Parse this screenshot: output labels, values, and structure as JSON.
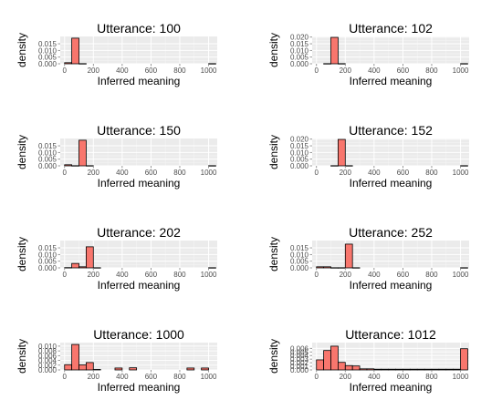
{
  "chart_data": [
    {
      "type": "bar",
      "title": "Utterance: 100",
      "xlabel": "Inferred meaning",
      "ylabel": "density",
      "xlim": [
        -30,
        1060
      ],
      "ylim": [
        0,
        0.0205
      ],
      "xticks": [
        0,
        200,
        400,
        600,
        800,
        1000
      ],
      "yticks": [
        0.0,
        0.005,
        0.01,
        0.015
      ],
      "ytick_labels": [
        "0.000",
        "0.005",
        "0.010",
        "0.015"
      ],
      "bin_width": 50,
      "bins": [
        {
          "x": 25,
          "y": 0.0008
        },
        {
          "x": 75,
          "y": 0.0192
        },
        {
          "x": 125,
          "y": 0.0001
        },
        {
          "x": 1025,
          "y": 0.0001
        }
      ]
    },
    {
      "type": "bar",
      "title": "Utterance: 102",
      "xlabel": "Inferred meaning",
      "ylabel": "density",
      "xlim": [
        -30,
        1060
      ],
      "ylim": [
        0,
        0.0205
      ],
      "xticks": [
        0,
        200,
        400,
        600,
        800,
        1000
      ],
      "yticks": [
        0.0,
        0.005,
        0.01,
        0.015,
        0.02
      ],
      "ytick_labels": [
        "0.000",
        "0.005",
        "0.010",
        "0.015",
        "0.020"
      ],
      "bin_width": 50,
      "bins": [
        {
          "x": 75,
          "y": 0.0001
        },
        {
          "x": 125,
          "y": 0.0198
        },
        {
          "x": 175,
          "y": 0.0001
        },
        {
          "x": 1025,
          "y": 0.0001
        }
      ]
    },
    {
      "type": "bar",
      "title": "Utterance: 150",
      "xlabel": "Inferred meaning",
      "ylabel": "density",
      "xlim": [
        -30,
        1060
      ],
      "ylim": [
        0,
        0.0205
      ],
      "xticks": [
        0,
        200,
        400,
        600,
        800,
        1000
      ],
      "yticks": [
        0.0,
        0.005,
        0.01,
        0.015
      ],
      "ytick_labels": [
        "0.000",
        "0.005",
        "0.010",
        "0.015"
      ],
      "bin_width": 50,
      "bins": [
        {
          "x": 25,
          "y": 0.0008
        },
        {
          "x": 75,
          "y": 0.0001
        },
        {
          "x": 125,
          "y": 0.0192
        },
        {
          "x": 175,
          "y": 0.0001
        },
        {
          "x": 1025,
          "y": 0.0001
        }
      ]
    },
    {
      "type": "bar",
      "title": "Utterance: 152",
      "xlabel": "Inferred meaning",
      "ylabel": "density",
      "xlim": [
        -30,
        1060
      ],
      "ylim": [
        0,
        0.0205
      ],
      "xticks": [
        0,
        200,
        400,
        600,
        800,
        1000
      ],
      "yticks": [
        0.0,
        0.005,
        0.01,
        0.015,
        0.02
      ],
      "ytick_labels": [
        "0.000",
        "0.005",
        "0.010",
        "0.015",
        "0.020"
      ],
      "bin_width": 50,
      "bins": [
        {
          "x": 125,
          "y": 0.0001
        },
        {
          "x": 175,
          "y": 0.0198
        },
        {
          "x": 225,
          "y": 0.0001
        },
        {
          "x": 1025,
          "y": 0.0001
        }
      ]
    },
    {
      "type": "bar",
      "title": "Utterance: 202",
      "xlabel": "Inferred meaning",
      "ylabel": "density",
      "xlim": [
        -30,
        1060
      ],
      "ylim": [
        0,
        0.0205
      ],
      "xticks": [
        0,
        200,
        400,
        600,
        800,
        1000
      ],
      "yticks": [
        0.0,
        0.005,
        0.01,
        0.015
      ],
      "ytick_labels": [
        "0.000",
        "0.005",
        "0.010",
        "0.015"
      ],
      "bin_width": 50,
      "bins": [
        {
          "x": 25,
          "y": 0.0002
        },
        {
          "x": 75,
          "y": 0.0033
        },
        {
          "x": 125,
          "y": 0.0008
        },
        {
          "x": 175,
          "y": 0.0158
        },
        {
          "x": 225,
          "y": 0.0001
        },
        {
          "x": 1025,
          "y": 0.0001
        }
      ]
    },
    {
      "type": "bar",
      "title": "Utterance: 252",
      "xlabel": "Inferred meaning",
      "ylabel": "density",
      "xlim": [
        -30,
        1060
      ],
      "ylim": [
        0,
        0.0205
      ],
      "xticks": [
        0,
        200,
        400,
        600,
        800,
        1000
      ],
      "yticks": [
        0.0,
        0.005,
        0.01,
        0.015
      ],
      "ytick_labels": [
        "0.000",
        "0.005",
        "0.010",
        "0.015"
      ],
      "bin_width": 50,
      "bins": [
        {
          "x": 25,
          "y": 0.0008
        },
        {
          "x": 75,
          "y": 0.0008
        },
        {
          "x": 125,
          "y": 0.0001
        },
        {
          "x": 175,
          "y": 0.0001
        },
        {
          "x": 225,
          "y": 0.0178
        },
        {
          "x": 275,
          "y": 0.0001
        },
        {
          "x": 1025,
          "y": 0.0001
        }
      ]
    },
    {
      "type": "bar",
      "title": "Utterance: 1000",
      "xlabel": "Inferred meaning",
      "ylabel": "density",
      "xlim": [
        -30,
        1060
      ],
      "ylim": [
        0,
        0.0115
      ],
      "xticks": [
        0,
        200,
        400,
        600,
        800,
        1000
      ],
      "yticks": [
        0.0,
        0.002,
        0.004,
        0.006,
        0.008,
        0.01
      ],
      "ytick_labels": [
        "0.000",
        "0.002",
        "0.004",
        "0.006",
        "0.008",
        "0.010"
      ],
      "bin_width": 50,
      "bins": [
        {
          "x": 25,
          "y": 0.0022
        },
        {
          "x": 75,
          "y": 0.0107
        },
        {
          "x": 125,
          "y": 0.0021
        },
        {
          "x": 175,
          "y": 0.0031
        },
        {
          "x": 225,
          "y": 0.0002
        },
        {
          "x": 375,
          "y": 0.0008
        },
        {
          "x": 475,
          "y": 0.0009
        },
        {
          "x": 875,
          "y": 0.0008
        },
        {
          "x": 975,
          "y": 0.0008
        }
      ]
    },
    {
      "type": "bar",
      "title": "Utterance: 1012",
      "xlabel": "Inferred meaning",
      "ylabel": "density",
      "xlim": [
        -30,
        1060
      ],
      "ylim": [
        0,
        0.0076
      ],
      "xticks": [
        0,
        200,
        400,
        600,
        800,
        1000
      ],
      "yticks": [
        0.0,
        0.001,
        0.002,
        0.003,
        0.004,
        0.005,
        0.006
      ],
      "ytick_labels": [
        "0.000",
        "0.001",
        "0.002",
        "0.003",
        "0.004",
        "0.005",
        "0.006"
      ],
      "bin_width": 50,
      "bins": [
        {
          "x": 25,
          "y": 0.0028
        },
        {
          "x": 75,
          "y": 0.0054
        },
        {
          "x": 125,
          "y": 0.0066
        },
        {
          "x": 175,
          "y": 0.0021
        },
        {
          "x": 225,
          "y": 0.0012
        },
        {
          "x": 275,
          "y": 0.0011
        },
        {
          "x": 325,
          "y": 0.0003
        },
        {
          "x": 375,
          "y": 0.0003
        },
        {
          "x": 425,
          "y": 0.0002
        },
        {
          "x": 475,
          "y": 0.0002
        },
        {
          "x": 525,
          "y": 0.0002
        },
        {
          "x": 575,
          "y": 0.0002
        },
        {
          "x": 625,
          "y": 0.0002
        },
        {
          "x": 675,
          "y": 0.0002
        },
        {
          "x": 725,
          "y": 0.0002
        },
        {
          "x": 775,
          "y": 0.0002
        },
        {
          "x": 825,
          "y": 0.0002
        },
        {
          "x": 875,
          "y": 0.0002
        },
        {
          "x": 925,
          "y": 0.0002
        },
        {
          "x": 975,
          "y": 0.0002
        },
        {
          "x": 1025,
          "y": 0.0059
        }
      ]
    }
  ],
  "colors": {
    "bar_fill": "#F8766D",
    "bar_stroke": "#000000",
    "panel_bg": "#EBEBEB",
    "grid_major": "#FFFFFF",
    "grid_minor": "#F5F5F5",
    "tick_text": "#4D4D4D"
  }
}
